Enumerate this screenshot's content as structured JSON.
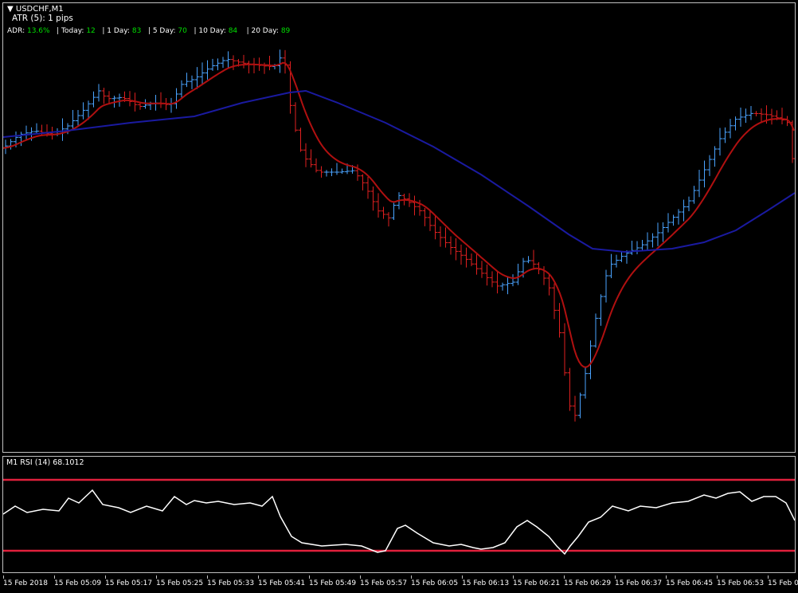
{
  "header": {
    "symbol": "USDCHF,M1",
    "atr": "ATR (5): 1 pips",
    "adr_label": "ADR: ",
    "adr_value": "13.6%",
    "today_label": "| Today: ",
    "today_value": "12",
    "one_day_label": "| 1 Day: ",
    "one_day_value": "83",
    "five_day_label": "| 5 Day: ",
    "five_day_value": "70",
    "ten_day_label": "| 10 Day: ",
    "ten_day_value": "84",
    "twenty_day_label": "| 20 Day: ",
    "twenty_day_value": "89"
  },
  "rsi": {
    "title": "M1 RSI (14) 68.1012"
  },
  "time_axis": [
    "15 Feb 2018",
    "15 Feb 05:09",
    "15 Feb 05:17",
    "15 Feb 05:25",
    "15 Feb 05:33",
    "15 Feb 05:41",
    "15 Feb 05:49",
    "15 Feb 05:57",
    "15 Feb 06:05",
    "15 Feb 06:13",
    "15 Feb 06:21",
    "15 Feb 06:29",
    "15 Feb 06:37",
    "15 Feb 06:45",
    "15 Feb 06:53",
    "15 Feb 07:01"
  ],
  "colors": {
    "bull": "#4aa3ff",
    "bear": "#e02020",
    "fast_ma": "#b01010",
    "slow_ma": "#1a1aa0",
    "rsi_line": "#ffffff",
    "rsi_levels": "#e0203c"
  }
}
